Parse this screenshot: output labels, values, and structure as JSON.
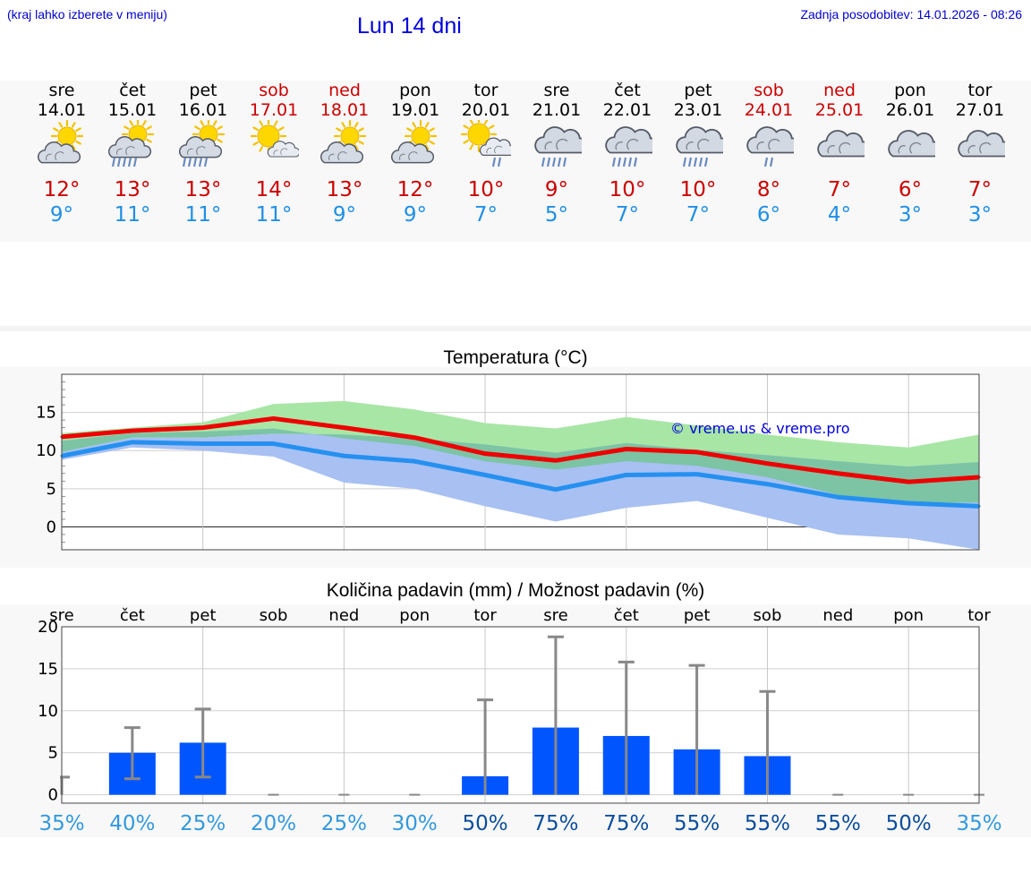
{
  "header": {
    "left_note": "(kraj lahko izberete v meniju)",
    "title": "Lun 14 dni",
    "update": "Zadnja posodobitev: 14.01.2026 - 08:26"
  },
  "days": [
    {
      "name": "sre",
      "date": "14.01",
      "weekend": false,
      "icon": "sun-cloud-icon",
      "tmax": "12°",
      "tmin": "9°"
    },
    {
      "name": "čet",
      "date": "15.01",
      "weekend": false,
      "icon": "sun-cloud-rain-icon",
      "tmax": "13°",
      "tmin": "11°"
    },
    {
      "name": "pet",
      "date": "16.01",
      "weekend": false,
      "icon": "sun-cloud-rain-icon",
      "tmax": "13°",
      "tmin": "11°"
    },
    {
      "name": "sob",
      "date": "17.01",
      "weekend": true,
      "icon": "sun-small-cloud-icon",
      "tmax": "14°",
      "tmin": "11°"
    },
    {
      "name": "ned",
      "date": "18.01",
      "weekend": true,
      "icon": "sun-cloud-icon",
      "tmax": "13°",
      "tmin": "9°"
    },
    {
      "name": "pon",
      "date": "19.01",
      "weekend": false,
      "icon": "sun-cloud-icon",
      "tmax": "12°",
      "tmin": "9°"
    },
    {
      "name": "tor",
      "date": "20.01",
      "weekend": false,
      "icon": "sun-small-cloud-rain-icon",
      "tmax": "10°",
      "tmin": "7°"
    },
    {
      "name": "sre",
      "date": "21.01",
      "weekend": false,
      "icon": "cloud-rain-icon",
      "tmax": "9°",
      "tmin": "5°"
    },
    {
      "name": "čet",
      "date": "22.01",
      "weekend": false,
      "icon": "cloud-rain-icon",
      "tmax": "10°",
      "tmin": "7°"
    },
    {
      "name": "pet",
      "date": "23.01",
      "weekend": false,
      "icon": "cloud-rain-icon",
      "tmax": "10°",
      "tmin": "7°"
    },
    {
      "name": "sob",
      "date": "24.01",
      "weekend": true,
      "icon": "cloud-light-rain-icon",
      "tmax": "8°",
      "tmin": "6°"
    },
    {
      "name": "ned",
      "date": "25.01",
      "weekend": true,
      "icon": "cloud-icon",
      "tmax": "7°",
      "tmin": "4°"
    },
    {
      "name": "pon",
      "date": "26.01",
      "weekend": false,
      "icon": "cloud-icon",
      "tmax": "6°",
      "tmin": "3°"
    },
    {
      "name": "tor",
      "date": "27.01",
      "weekend": false,
      "icon": "cloud-icon",
      "tmax": "7°",
      "tmin": "3°"
    }
  ],
  "colors": {
    "max_line": "#ee0000",
    "min_line": "#2590f0",
    "max_band": "#a8e6a6",
    "min_band": "#a8c0f2",
    "overlap_band": "#7cc4a4",
    "bar": "#0055ff",
    "whisker": "#888888",
    "prob_low": "#3399dd",
    "prob_high": "#0b4d9c",
    "watermark": "#0000dd"
  },
  "chart_data": [
    {
      "type": "line",
      "title": "Temperatura (°C)",
      "watermark": "© vreme.us & vreme.pro",
      "x": [
        0,
        1,
        2,
        3,
        4,
        5,
        6,
        7,
        8,
        9,
        10,
        11,
        12,
        13
      ],
      "ylim": [
        -3,
        20
      ],
      "yticks": [
        0,
        5,
        10,
        15
      ],
      "ytick_labels": [
        "0",
        "5",
        "10",
        "15"
      ],
      "grid": true,
      "series": [
        {
          "name": "max",
          "values": [
            11.8,
            12.6,
            13.0,
            14.2,
            13.0,
            11.7,
            9.6,
            8.7,
            10.2,
            9.8,
            8.3,
            7.0,
            5.9,
            6.5
          ]
        },
        {
          "name": "min",
          "values": [
            9.3,
            11.1,
            10.9,
            10.9,
            9.3,
            8.6,
            6.8,
            4.9,
            6.8,
            6.9,
            5.6,
            3.9,
            3.1,
            2.7
          ]
        }
      ],
      "bands": [
        {
          "name": "max_spread",
          "low": [
            11.3,
            12.3,
            12.5,
            12.9,
            11.6,
            10.6,
            8.6,
            7.5,
            8.6,
            8.0,
            6.5,
            4.2,
            3.1,
            3.2
          ],
          "high": [
            12.3,
            13.0,
            13.7,
            16.1,
            16.5,
            15.4,
            13.6,
            12.9,
            14.4,
            13.3,
            12.1,
            11.1,
            10.4,
            12.1
          ]
        },
        {
          "name": "min_spread",
          "low": [
            8.8,
            10.4,
            10.0,
            9.2,
            5.8,
            5.0,
            2.7,
            0.7,
            2.5,
            3.4,
            1.2,
            -1.0,
            -1.5,
            -3.0
          ],
          "high": [
            9.8,
            11.7,
            11.7,
            12.2,
            12.1,
            11.6,
            10.8,
            9.7,
            11.0,
            10.1,
            9.4,
            8.6,
            7.9,
            8.5
          ]
        }
      ]
    },
    {
      "type": "bar",
      "title": "Količina padavin (mm) / Možnost padavin (%)",
      "categories": [
        "sre",
        "čet",
        "pet",
        "sob",
        "ned",
        "pon",
        "tor",
        "sre",
        "čet",
        "pet",
        "sob",
        "ned",
        "pon",
        "tor"
      ],
      "values": [
        0,
        5.0,
        6.2,
        0,
        0,
        0,
        2.2,
        8.0,
        7.0,
        5.4,
        4.6,
        0,
        0,
        0
      ],
      "err_low": [
        0,
        1.9,
        2.1,
        0,
        0,
        0,
        0,
        0,
        0,
        0,
        0,
        0,
        0,
        0
      ],
      "err_high": [
        2.1,
        8.0,
        10.2,
        0,
        0,
        0,
        11.3,
        18.8,
        15.8,
        15.4,
        12.3,
        0,
        0,
        0
      ],
      "ylim": [
        -1,
        20
      ],
      "yticks": [
        0,
        5,
        10,
        15,
        20
      ],
      "ytick_labels": [
        "0",
        "5",
        "10",
        "15",
        "20"
      ],
      "probabilities": [
        "35%",
        "40%",
        "25%",
        "20%",
        "25%",
        "30%",
        "50%",
        "75%",
        "75%",
        "55%",
        "55%",
        "55%",
        "50%",
        "35%"
      ],
      "xlabel": "",
      "ylabel": ""
    }
  ]
}
